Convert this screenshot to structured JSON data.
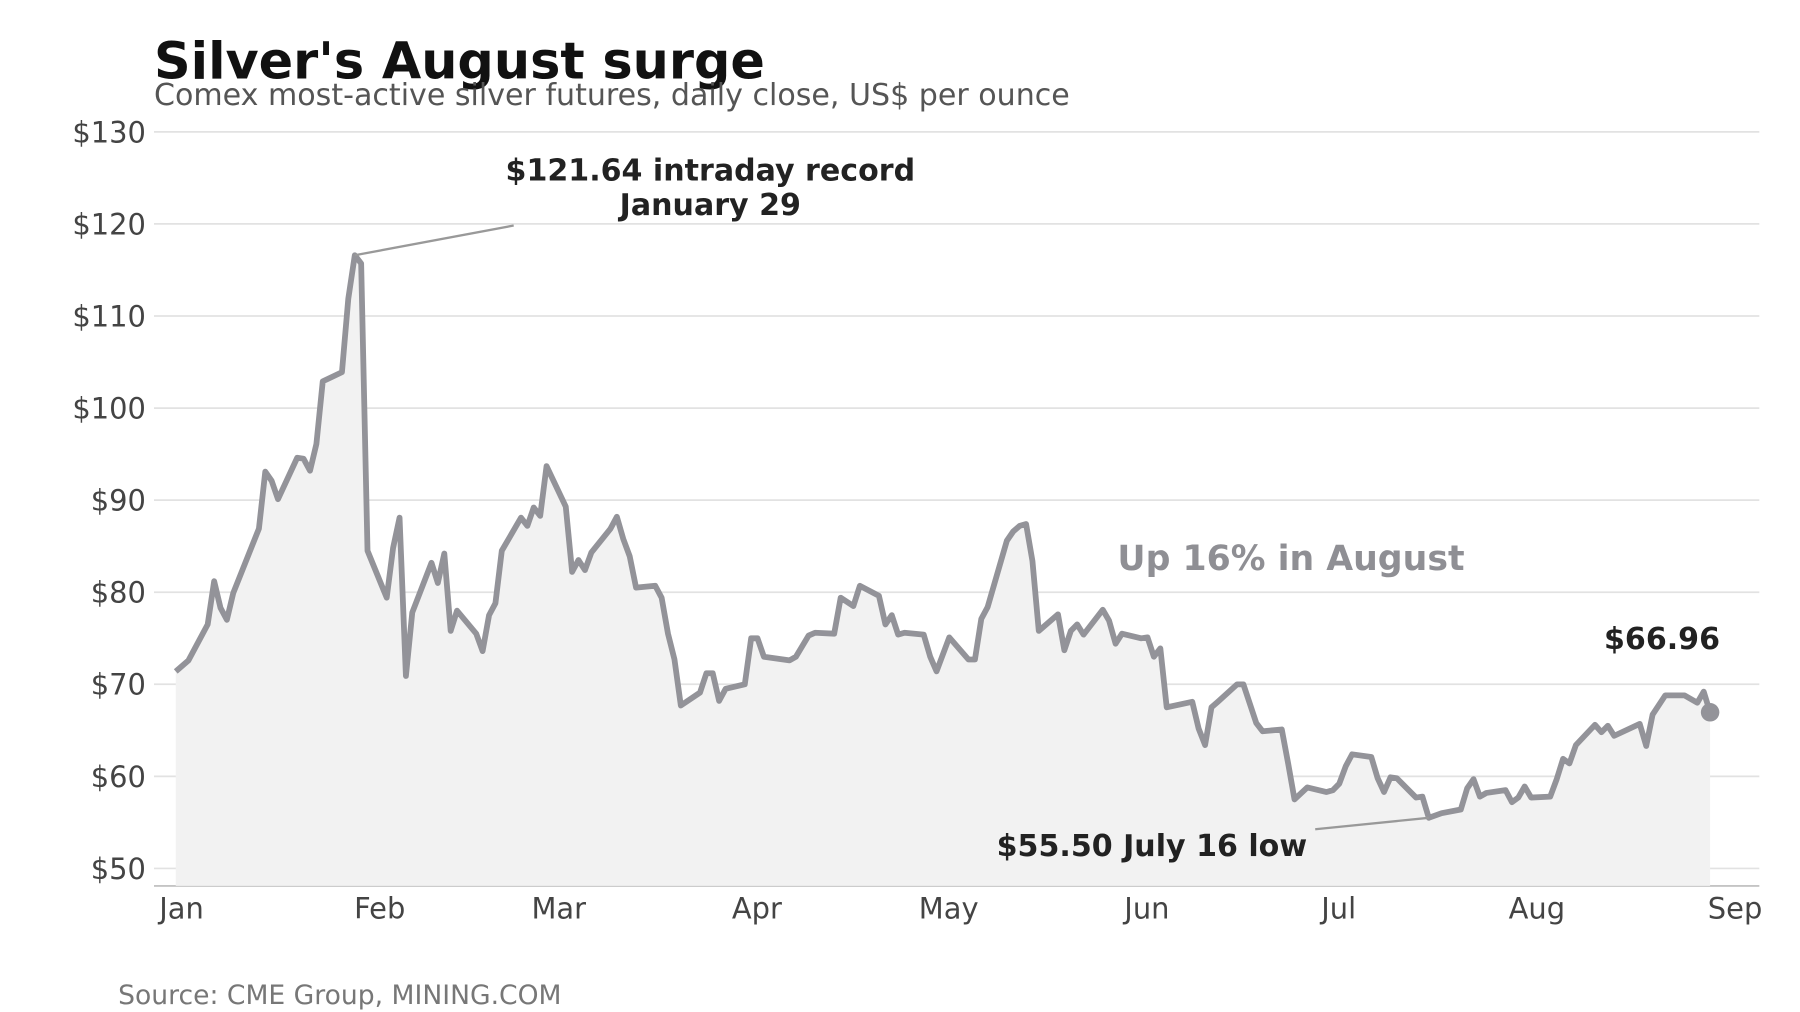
{
  "chart_data": {
    "type": "line",
    "title": "Silver's August surge",
    "subtitle": "Comex most-active silver futures, daily close, US$ per ounce",
    "source": "Source: CME Group, MINING.COM",
    "annotations": [
      "$121.64 intraday record",
      "January 29",
      "$55.50 July 16 low",
      "Up 16% in August",
      "$66.96"
    ],
    "xlim": [
      -3.4,
      247.7
    ],
    "xticks": [
      {
        "value": 0,
        "label": "Jan"
      },
      {
        "value": 31,
        "label": "Feb"
      },
      {
        "value": 59,
        "label": "Mar"
      },
      {
        "value": 90,
        "label": "Apr"
      },
      {
        "value": 120,
        "label": "May"
      },
      {
        "value": 151,
        "label": "Jun"
      },
      {
        "value": 181,
        "label": "Jul"
      },
      {
        "value": 212,
        "label": "Aug"
      },
      {
        "value": 243,
        "label": "Sep"
      }
    ],
    "ylim": [
      48.1,
      130
    ],
    "yticks": [
      {
        "value": 50,
        "label": "$50"
      },
      {
        "value": 60,
        "label": "$60"
      },
      {
        "value": 70,
        "label": "$70"
      },
      {
        "value": 80,
        "label": "$80"
      },
      {
        "value": 90,
        "label": "$90"
      },
      {
        "value": 100,
        "label": "$100"
      },
      {
        "value": 110,
        "label": "$110"
      },
      {
        "value": 120,
        "label": "$120"
      },
      {
        "value": 130,
        "label": "$130"
      }
    ],
    "grid": true,
    "color": "#939399",
    "x": [
      0,
      2,
      5,
      6,
      7,
      8,
      9,
      13,
      14,
      15,
      16,
      19,
      20,
      21,
      22,
      23,
      26,
      27,
      28,
      29,
      30,
      33,
      34,
      35,
      36,
      37,
      40,
      41,
      42,
      43,
      44,
      47,
      48,
      49,
      50,
      51,
      54,
      55,
      56,
      57,
      58,
      61,
      62,
      63,
      64,
      65,
      68,
      69,
      70,
      71,
      72,
      75,
      76,
      77,
      78,
      79,
      82,
      83,
      84,
      85,
      86,
      89,
      90,
      91,
      92,
      96,
      97,
      99,
      100,
      103,
      104,
      106,
      107,
      110,
      111,
      112,
      113,
      114,
      117,
      118,
      119,
      121,
      124,
      125,
      126,
      127,
      130,
      131,
      132,
      133,
      134,
      135,
      138,
      139,
      140,
      141,
      142,
      145,
      146,
      147,
      148,
      151,
      152,
      153,
      154,
      155,
      159,
      160,
      161,
      162,
      163,
      166,
      167,
      169,
      170,
      173,
      174,
      175,
      177,
      180,
      181,
      182,
      183,
      184,
      187,
      188,
      189,
      190,
      191,
      194,
      195,
      196,
      198,
      201,
      202,
      203,
      204,
      205,
      208,
      209,
      210,
      211,
      212,
      215,
      216,
      217,
      218,
      219,
      222,
      223,
      224,
      225,
      229,
      230,
      231,
      233,
      236,
      238,
      239,
      240
    ],
    "values": [
      71.4,
      72.6,
      76.5,
      81.2,
      78.3,
      77.0,
      79.9,
      86.9,
      93.1,
      92.1,
      90.1,
      94.6,
      94.5,
      93.2,
      96.1,
      102.9,
      103.9,
      111.9,
      116.6,
      115.7,
      84.5,
      79.4,
      84.8,
      88.1,
      70.9,
      77.8,
      83.2,
      81.0,
      84.2,
      75.8,
      78.0,
      75.5,
      73.6,
      77.5,
      78.8,
      84.5,
      88.1,
      87.2,
      89.2,
      88.3,
      93.7,
      89.3,
      82.2,
      83.5,
      82.4,
      84.3,
      86.9,
      88.2,
      85.8,
      83.9,
      80.5,
      80.7,
      79.4,
      75.5,
      72.7,
      67.7,
      69.1,
      71.2,
      71.2,
      68.2,
      69.5,
      70.0,
      75.0,
      75.0,
      73.0,
      72.6,
      73.0,
      75.3,
      75.6,
      75.5,
      79.4,
      78.5,
      80.7,
      79.6,
      76.5,
      77.5,
      75.4,
      75.6,
      75.4,
      73.0,
      71.4,
      75.1,
      72.7,
      72.7,
      77.1,
      78.4,
      85.6,
      86.6,
      87.2,
      87.4,
      83.4,
      75.8,
      77.6,
      73.7,
      75.8,
      76.5,
      75.4,
      78.1,
      76.9,
      74.4,
      75.5,
      75.0,
      75.1,
      73.0,
      73.9,
      67.5,
      68.1,
      65.2,
      63.4,
      67.5,
      68.1,
      70.0,
      70.0,
      65.8,
      64.9,
      65.1,
      61.4,
      57.5,
      58.8,
      58.3,
      58.5,
      59.2,
      61.1,
      62.4,
      62.1,
      59.8,
      58.3,
      59.9,
      59.8,
      57.7,
      57.8,
      55.5,
      56.0,
      56.4,
      58.7,
      59.7,
      57.8,
      58.2,
      58.5,
      57.2,
      57.7,
      58.9,
      57.7,
      57.8,
      59.7,
      61.9,
      61.4,
      63.4,
      65.6,
      64.8,
      65.5,
      64.4,
      65.7,
      63.3,
      66.7,
      68.8,
      68.8,
      68.0,
      69.2,
      66.96
    ]
  }
}
